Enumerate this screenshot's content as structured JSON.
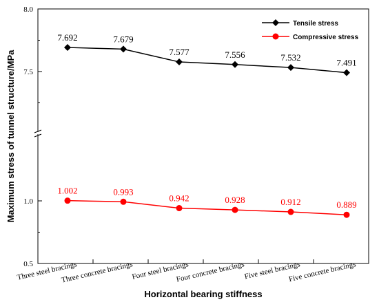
{
  "chart_data": {
    "type": "line",
    "categories": [
      "Three steel bracings",
      "Three concrete bracings",
      "Four steel bracings",
      "Four concrete bracings",
      "Five steel bracings",
      "Five concrete bracings"
    ],
    "xlabel": "Horizontal bearing stiffness",
    "ylabel": "Maximum stress of tunnel structure/MPa",
    "y_ticks": [
      "8.0",
      "7.5",
      "1.0",
      "0.5"
    ],
    "axis_break": true,
    "legend_position": "top-right",
    "series": [
      {
        "name": "Tensile stress",
        "color": "#000000",
        "marker": "diamond",
        "values": [
          7.692,
          7.679,
          7.577,
          7.556,
          7.532,
          7.491
        ],
        "labels": [
          "7.692",
          "7.679",
          "7.577",
          "7.556",
          "7.532",
          "7.491"
        ]
      },
      {
        "name": "Compressive stress",
        "color": "#ff0000",
        "marker": "circle",
        "values": [
          1.002,
          0.993,
          0.942,
          0.928,
          0.912,
          0.889
        ],
        "labels": [
          "1.002",
          "0.993",
          "0.942",
          "0.928",
          "0.912",
          "0.889"
        ]
      }
    ]
  }
}
